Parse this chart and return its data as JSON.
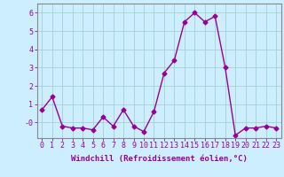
{
  "x": [
    0,
    1,
    2,
    3,
    4,
    5,
    6,
    7,
    8,
    9,
    10,
    11,
    12,
    13,
    14,
    15,
    16,
    17,
    18,
    19,
    20,
    21,
    22,
    23
  ],
  "y": [
    0.7,
    1.4,
    -0.2,
    -0.3,
    -0.3,
    -0.4,
    0.3,
    -0.2,
    0.7,
    -0.2,
    -0.5,
    0.6,
    2.7,
    3.4,
    5.5,
    6.0,
    5.5,
    5.8,
    3.0,
    -0.7,
    -0.3,
    -0.3,
    -0.2,
    -0.3
  ],
  "line_color": "#990099",
  "marker": "D",
  "markersize": 2.5,
  "linewidth": 1.0,
  "xlabel": "Windchill (Refroidissement éolien,°C)",
  "xlabel_fontsize": 6.5,
  "ylim": [
    -0.85,
    6.5
  ],
  "xlim": [
    -0.5,
    23.5
  ],
  "yticks": [
    0,
    1,
    2,
    3,
    4,
    5,
    6
  ],
  "ytick_labels": [
    "-0",
    "1",
    "2",
    "3",
    "4",
    "5",
    "6"
  ],
  "xtick_labels": [
    "0",
    "1",
    "2",
    "3",
    "4",
    "5",
    "6",
    "7",
    "8",
    "9",
    "10",
    "11",
    "12",
    "13",
    "14",
    "15",
    "16",
    "17",
    "18",
    "19",
    "20",
    "21",
    "22",
    "23"
  ],
  "background_color": "#cceeff",
  "grid_color": "#99cccc",
  "tick_fontsize": 6.0
}
